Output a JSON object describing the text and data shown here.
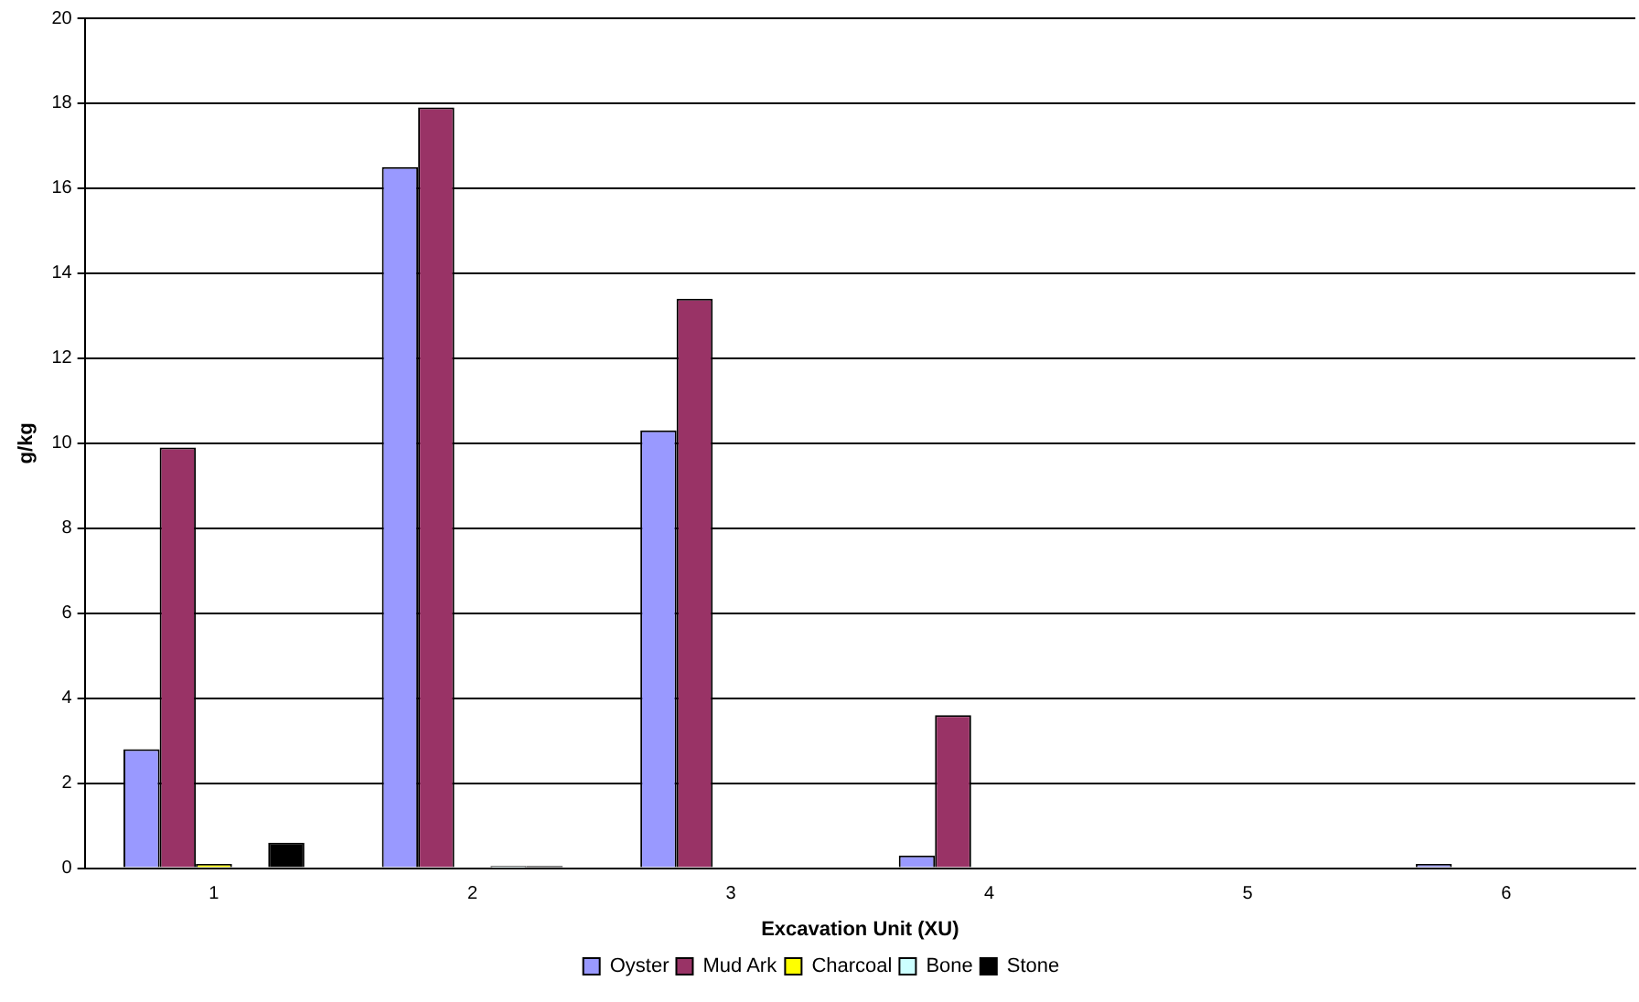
{
  "chart_data": {
    "type": "bar",
    "xlabel": "Excavation Unit (XU)",
    "ylabel": "g/kg",
    "categories": [
      "1",
      "2",
      "3",
      "4",
      "5",
      "6"
    ],
    "series": [
      {
        "name": "Oyster",
        "color": "#9999ff",
        "values": [
          2.8,
          16.5,
          10.3,
          0.3,
          0,
          0.1
        ]
      },
      {
        "name": "Mud Ark",
        "color": "#993366",
        "values": [
          9.9,
          17.9,
          13.4,
          3.6,
          0,
          0
        ]
      },
      {
        "name": "Charcoal",
        "color": "#ffff00",
        "values": [
          0.1,
          null,
          0,
          0,
          0,
          0
        ]
      },
      {
        "name": "Bone",
        "color": "#ccffff",
        "values": [
          0,
          0.05,
          0,
          0,
          0,
          0
        ]
      },
      {
        "name": "Stone",
        "color": "#000000",
        "values": [
          0.6,
          0.05,
          0,
          null,
          0,
          0
        ]
      }
    ],
    "ylim": [
      0,
      20
    ],
    "yticks": [
      0,
      2,
      4,
      6,
      8,
      10,
      12,
      14,
      16,
      18,
      20
    ],
    "grid": "y",
    "legend": "bottom"
  }
}
